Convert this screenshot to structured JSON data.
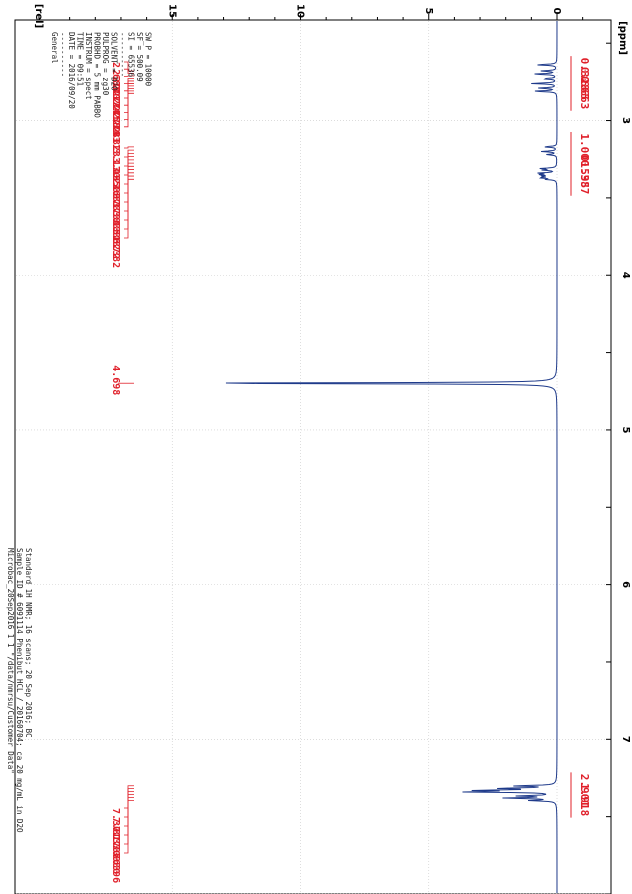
{
  "chart_data": {
    "type": "line",
    "x_axis": {
      "label": "[ppm]",
      "ticks": [
        "3",
        "4",
        "5",
        "6",
        "7"
      ],
      "range": [
        2.35,
        8.0
      ]
    },
    "y_axis": {
      "label": "[rel]",
      "ticks": [
        "15",
        "10",
        "5",
        "0"
      ],
      "range": [
        -1.5,
        19.8
      ]
    },
    "series": [
      {
        "color": "#1e3a8a",
        "peaks": [
          {
            "ppm": 2.64,
            "height": 0.8
          },
          {
            "ppm": 2.68,
            "height": 0.6
          },
          {
            "ppm": 2.7,
            "height": 0.9
          },
          {
            "ppm": 2.73,
            "height": 0.5
          },
          {
            "ppm": 2.76,
            "height": 1.0
          },
          {
            "ppm": 2.79,
            "height": 0.7
          },
          {
            "ppm": 2.81,
            "height": 0.9
          },
          {
            "ppm": 3.17,
            "height": 0.5
          },
          {
            "ppm": 3.2,
            "height": 0.6
          },
          {
            "ppm": 3.22,
            "height": 0.4
          },
          {
            "ppm": 3.31,
            "height": 0.6
          },
          {
            "ppm": 3.32,
            "height": 0.5
          },
          {
            "ppm": 3.34,
            "height": 0.7
          },
          {
            "ppm": 3.35,
            "height": 0.6
          },
          {
            "ppm": 3.36,
            "height": 0.5
          },
          {
            "ppm": 3.37,
            "height": 0.6
          },
          {
            "ppm": 3.38,
            "height": 0.4
          },
          {
            "ppm": 4.698,
            "height": 14.9
          },
          {
            "ppm": 7.301,
            "height": 1.6
          },
          {
            "ppm": 7.317,
            "height": 2.1
          },
          {
            "ppm": 7.33,
            "height": 2.9
          },
          {
            "ppm": 7.34,
            "height": 3.4
          },
          {
            "ppm": 7.366,
            "height": 1.4
          },
          {
            "ppm": 7.38,
            "height": 2.0
          },
          {
            "ppm": 7.396,
            "height": 1.0
          }
        ]
      }
    ],
    "peak_labels_top": [
      "2.683",
      "2.700",
      "2.717",
      "2.724",
      "2.741",
      "2.758",
      "2.774",
      "2.793",
      "2.811",
      "2.823"
    ],
    "peak_labels_mid": [
      "3.170",
      "3.195",
      "3.216",
      "3.307",
      "3.317",
      "3.338",
      "3.343",
      "3.351",
      "3.362",
      "3.372",
      "3.382"
    ],
    "peak_label_single": "4.698",
    "peak_labels_bottom": [
      "7.301",
      "7.317",
      "7.330",
      "7.366",
      "7.380",
      "7.396"
    ],
    "integrals": [
      {
        "ppm": 2.7,
        "value": "0.328"
      },
      {
        "ppm": 2.76,
        "value": "0.665"
      },
      {
        "ppm": 2.82,
        "value": "0.663"
      },
      {
        "ppm": 3.19,
        "value": "1.000"
      },
      {
        "ppm": 3.33,
        "value": "0.595"
      },
      {
        "ppm": 3.37,
        "value": "1.387"
      },
      {
        "ppm": 7.33,
        "value": "2.901"
      },
      {
        "ppm": 7.39,
        "value": "1.918"
      }
    ]
  },
  "parameters": [
    "General",
    "----------",
    "DATE = 2016/09/20",
    "TIME = 09:51",
    "INSTRUM = spect",
    "PROBHD = 5 mm PABBO",
    "PULPROG = zg30",
    "SOLVENT = D2O",
    "----------",
    "SI = 65536",
    "SF = 500.09",
    "SW_P = 10000"
  ],
  "sample_info": [
    "Microbac_20Sep2016  1  1  \"/data/nmrsu/Customer Data\"",
    "Sample ID # 6091114 Phenibut HCL / 20160704; ca 20 mg/mL in D2O",
    "Standard 1H NMR; 16 scans; 20 Sep 2016; BC"
  ]
}
